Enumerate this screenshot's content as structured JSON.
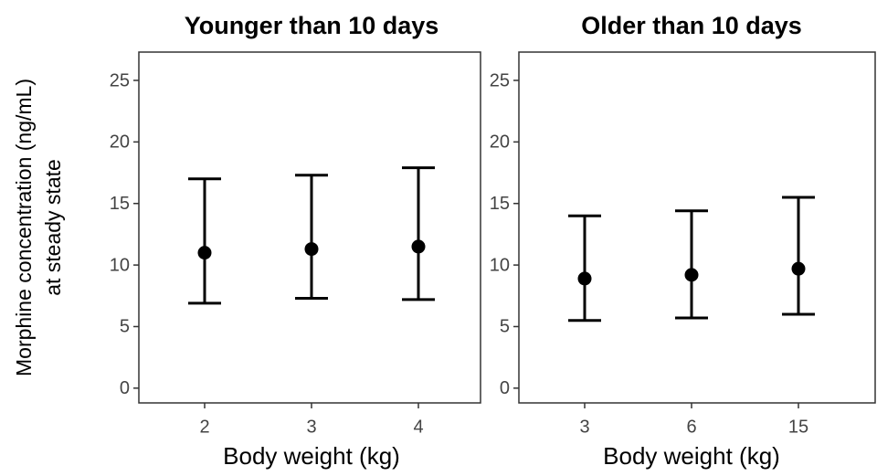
{
  "chart_data": [
    {
      "type": "errorbar",
      "title": "Younger than 10 days",
      "xlabel": "Body weight (kg)",
      "ylabel": [
        "Morphine concentration (ng/mL)",
        "at steady state"
      ],
      "categories": [
        "2",
        "3",
        "4"
      ],
      "values": [
        11.0,
        11.3,
        11.5
      ],
      "lower": [
        6.9,
        7.3,
        7.2
      ],
      "upper": [
        17.0,
        17.3,
        17.9
      ],
      "color": "#000000",
      "ylim": [
        -1.2,
        27.3
      ],
      "yticks": [
        0,
        5,
        10,
        15,
        20,
        25
      ]
    },
    {
      "type": "errorbar",
      "title": "Older than 10 days",
      "xlabel": "Body weight (kg)",
      "categories": [
        "3",
        "6",
        "15"
      ],
      "values": [
        8.9,
        9.2,
        9.7
      ],
      "lower": [
        5.5,
        5.7,
        6.0
      ],
      "upper": [
        14.0,
        14.4,
        15.5
      ],
      "color": "#000000",
      "ylim": [
        -1.2,
        27.3
      ],
      "yticks": [
        0,
        5,
        10,
        15,
        20,
        25
      ]
    }
  ]
}
